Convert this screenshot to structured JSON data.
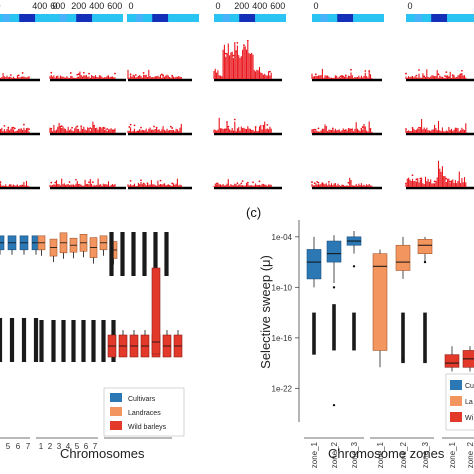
{
  "figure": {
    "panel_c_label": "(c)",
    "xlabel_left": "Chromosomes",
    "xlabel_right": "Chromosome zones",
    "ylabel_right": "Selective sweep (μ)"
  },
  "colors": {
    "cultivars": "#2b78b5",
    "landraces": "#f2955f",
    "wild": "#e2392b",
    "manhattan_red": "#e8141a",
    "track_light": "#29c4f2",
    "track_dark": "#1530b8",
    "whisker": "#1a1a1a"
  },
  "chart_data": [
    {
      "type": "heatmap",
      "name": "position tracks (top strip)",
      "tick_labels": [
        "0",
        "200",
        "400",
        "600"
      ],
      "panels": [
        {
          "ticks": [
            "0",
            "400",
            "600"
          ]
        },
        {
          "ticks": [
            "0",
            "200",
            "400",
            "600"
          ]
        },
        {
          "ticks": [
            "0"
          ]
        },
        {
          "ticks": [
            "0",
            "200",
            "400",
            "600"
          ]
        },
        {
          "ticks": [
            "0"
          ]
        },
        {
          "ticks": [
            "0"
          ]
        }
      ]
    },
    {
      "type": "bar",
      "name": "manhattan grid (3 rows x 6 columns)",
      "rows": 3,
      "columns": 6,
      "peak_level": [
        [
          0.25,
          0.35,
          0.4,
          1.0,
          0.35,
          0.35
        ],
        [
          0.5,
          0.6,
          0.5,
          0.6,
          0.45,
          0.55
        ],
        [
          0.25,
          0.3,
          0.3,
          0.3,
          0.35,
          0.9
        ]
      ]
    },
    {
      "type": "box",
      "name": "panel (b) - sweeps by chromosome",
      "xlabel": "Chromosomes",
      "tick_labels": [
        "5",
        "6",
        "7",
        "1",
        "2",
        "3",
        "4",
        "5",
        "6",
        "7"
      ],
      "legend": [
        "Cultivars",
        "Landraces",
        "Wild barleys"
      ],
      "series": [
        {
          "name": "Cultivars",
          "level": "high",
          "boxes": [
            0.78,
            0.78,
            0.78,
            0.78
          ]
        },
        {
          "name": "Landraces",
          "level": "high",
          "boxes": [
            0.78,
            0.76,
            0.78,
            0.77,
            0.78,
            0.76,
            0.78,
            0.75
          ]
        },
        {
          "name": "Wild barleys",
          "level": "low",
          "boxes": [
            0.35,
            0.35,
            0.35,
            0.35,
            0.35,
            0.35,
            0.35,
            0.6
          ]
        }
      ]
    },
    {
      "type": "box",
      "name": "panel (c) - sweeps by chromosome zone",
      "title": "(c)",
      "xlabel": "Chromosome zones",
      "ylabel": "Selective sweep (μ)",
      "y_scale": "log10",
      "y_ticks": [
        "1e-04",
        "1e-10",
        "1e-16",
        "1e-22"
      ],
      "ylim": [
        -26,
        -2
      ],
      "categories": [
        "zone_1",
        "zone_2",
        "zone_3",
        "zone_1",
        "zone_2",
        "zone_3",
        "zone_1",
        "zone_2"
      ],
      "legend": [
        "Cu",
        "La",
        "Wi"
      ],
      "series": [
        {
          "name": "Cultivars",
          "boxes": [
            {
              "zone": "zone_1",
              "q1": -9,
              "median": -7,
              "q3": -5.5,
              "min": -10,
              "max": -4
            },
            {
              "zone": "zone_2",
              "q1": -7,
              "median": -6,
              "q3": -4.5,
              "min": -9.5,
              "max": -3.8
            },
            {
              "zone": "zone_3",
              "q1": -5,
              "median": -4.5,
              "q3": -4,
              "min": -6,
              "max": -3.3
            }
          ]
        },
        {
          "name": "Landraces",
          "boxes": [
            {
              "zone": "zone_1",
              "q1": -17.5,
              "median": -7.5,
              "q3": -6,
              "min": -19.5,
              "max": -5.5
            },
            {
              "zone": "zone_2",
              "q1": -8,
              "median": -7,
              "q3": -5,
              "min": -9,
              "max": -4
            },
            {
              "zone": "zone_3",
              "q1": -6,
              "median": -5,
              "q3": -4.3,
              "min": -7,
              "max": -4
            }
          ]
        },
        {
          "name": "Wild barleys",
          "boxes": [
            {
              "zone": "zone_1",
              "q1": -19.5,
              "median": -19,
              "q3": -18,
              "min": -20,
              "max": -17
            },
            {
              "zone": "zone_2",
              "q1": -19.5,
              "median": -18.5,
              "q3": -17.5,
              "min": -20,
              "max": -17
            }
          ]
        }
      ]
    }
  ]
}
